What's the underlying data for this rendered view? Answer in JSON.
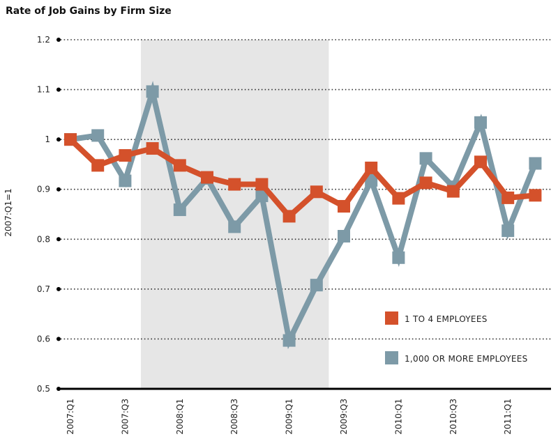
{
  "chart_data": {
    "type": "line",
    "title": "Rate of Job Gains by Firm Size",
    "ylabel": "2007:Q1=1",
    "xlabel": "",
    "ylim": [
      0.5,
      1.2
    ],
    "yticks": [
      0.5,
      0.6,
      0.7,
      0.8,
      0.9,
      1,
      1.1,
      1.2
    ],
    "ytick_labels": [
      "0.5",
      "0.6",
      "0.7",
      "0.8",
      "0.9",
      "1",
      "1.1",
      "1.2"
    ],
    "categories": [
      "2007:Q1",
      "2007:Q2",
      "2007:Q3",
      "2007:Q4",
      "2008:Q1",
      "2008:Q2",
      "2008:Q3",
      "2008:Q4",
      "2009:Q1",
      "2009:Q2",
      "2009:Q3",
      "2009:Q4",
      "2010:Q1",
      "2010:Q2",
      "2010:Q3",
      "2010:Q4",
      "2011:Q1",
      "2011:Q2"
    ],
    "xtick_labels": [
      {
        "index": 0,
        "label": "2007:Q1"
      },
      {
        "index": 2,
        "label": "2007:Q3"
      },
      {
        "index": 4,
        "label": "2008:Q1"
      },
      {
        "index": 6,
        "label": "2008:Q3"
      },
      {
        "index": 8,
        "label": "2009:Q1"
      },
      {
        "index": 10,
        "label": "2009:Q3"
      },
      {
        "index": 12,
        "label": "2010:Q1"
      },
      {
        "index": 14,
        "label": "2010:Q3"
      },
      {
        "index": 16,
        "label": "2011:Q1"
      }
    ],
    "shaded_region": {
      "from": "2007:Q4",
      "to": "2009:Q2"
    },
    "grid": "horizontal dotted",
    "legend_position": "bottom-right",
    "series": [
      {
        "name": "1 TO 4 EMPLOYEES",
        "color": "#d4512b",
        "values": [
          1.0,
          0.948,
          0.968,
          0.982,
          0.948,
          0.924,
          0.91,
          0.91,
          0.846,
          0.895,
          0.866,
          0.943,
          0.882,
          0.913,
          0.896,
          0.955,
          0.883,
          0.888
        ]
      },
      {
        "name": "1,000 OR MORE EMPLOYEES",
        "color": "#7d9aa7",
        "values": [
          1.0,
          1.008,
          0.917,
          1.096,
          0.859,
          0.922,
          0.825,
          0.887,
          0.597,
          0.708,
          0.806,
          0.918,
          0.763,
          0.962,
          0.905,
          1.034,
          0.817,
          0.952
        ]
      }
    ]
  },
  "colors": {
    "shade": "#e6e6e6",
    "grid": "#333333",
    "axis": "#000000"
  }
}
